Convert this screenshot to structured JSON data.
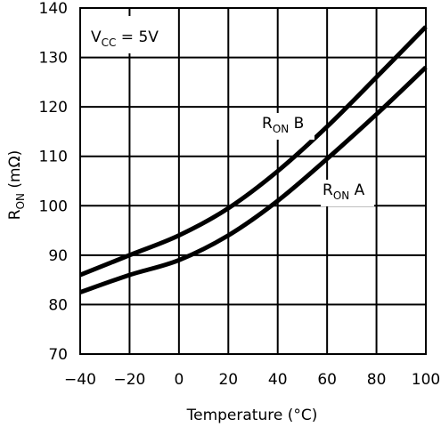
{
  "chart_data": {
    "type": "line",
    "xlabel": "Temperature (°C)",
    "ylabel_main": "R",
    "ylabel_sub": "ON",
    "ylabel_unit": " (mΩ)",
    "xlim": [
      -40,
      100
    ],
    "ylim": [
      70,
      140
    ],
    "x_ticks": [
      "-40",
      "-20",
      "0",
      "20",
      "40",
      "60",
      "80",
      "100"
    ],
    "y_ticks": [
      "70",
      "80",
      "90",
      "100",
      "110",
      "120",
      "130",
      "140"
    ],
    "grid": true,
    "condition": {
      "main": "V",
      "sub": "CC",
      "rest": " = 5V"
    },
    "series": [
      {
        "name_main": "R",
        "name_sub": "ON",
        "name_rest": " B",
        "x": [
          -40,
          -20,
          0,
          20,
          40,
          60,
          80,
          100
        ],
        "y": [
          86,
          90,
          94,
          99.5,
          107,
          116,
          126,
          136.2
        ]
      },
      {
        "name_main": "R",
        "name_sub": "ON",
        "name_rest": " A",
        "x": [
          -40,
          -20,
          0,
          20,
          40,
          60,
          80,
          100
        ],
        "y": [
          82.5,
          86,
          89,
          94,
          101,
          109.5,
          118.5,
          128
        ]
      }
    ]
  }
}
